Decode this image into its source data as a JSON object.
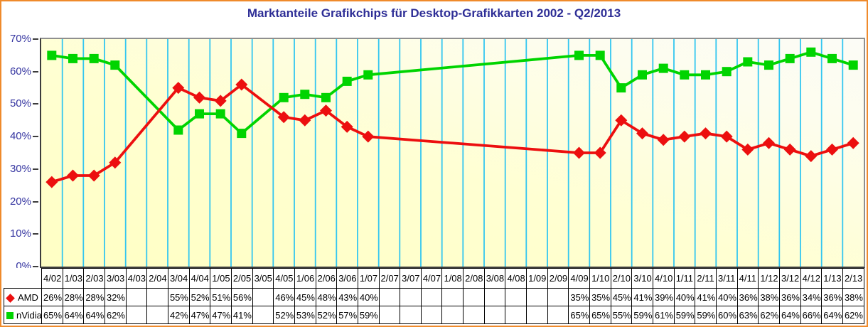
{
  "title": "Marktanteile Grafikchips für Desktop-Grafikkarten 2002 - Q2/2013",
  "colors": {
    "amd": "#EC0F0F",
    "nvidia": "#00D400",
    "gridline": "#33C6F0",
    "title_text": "#2E2E96",
    "axis_text": "#3434A0",
    "outer_border": "#EF8A2B",
    "plot_bg_yellow": "#FFFFC4",
    "plot_bg_light": "#FCFCF6"
  },
  "chart_data": {
    "type": "line",
    "title": "Marktanteile Grafikchips für Desktop-Grafikkarten 2002 - Q2/2013",
    "xlabel": "",
    "ylabel": "",
    "ylim": [
      0,
      70
    ],
    "ytick_step": 10,
    "ytick_suffix": "%",
    "grid": "vertical-only",
    "legend_position": "table-left",
    "categories": [
      "4/02",
      "1/03",
      "2/03",
      "3/03",
      "4/03",
      "2/04",
      "3/04",
      "4/04",
      "1/05",
      "2/05",
      "3/05",
      "4/05",
      "1/06",
      "2/06",
      "3/06",
      "1/07",
      "2/07",
      "3/07",
      "4/07",
      "1/08",
      "2/08",
      "3/08",
      "4/08",
      "1/09",
      "2/09",
      "4/09",
      "1/10",
      "2/10",
      "3/10",
      "4/10",
      "1/11",
      "2/11",
      "3/11",
      "4/11",
      "1/12",
      "3/12",
      "4/12",
      "1/13",
      "2/13"
    ],
    "series": [
      {
        "name": "AMD",
        "marker": "diamond",
        "color": "#EC0F0F",
        "values": [
          26,
          28,
          28,
          32,
          null,
          null,
          55,
          52,
          51,
          56,
          null,
          46,
          45,
          48,
          43,
          40,
          null,
          null,
          null,
          null,
          null,
          null,
          null,
          null,
          null,
          35,
          35,
          45,
          41,
          39,
          40,
          41,
          40,
          36,
          38,
          36,
          34,
          36,
          38
        ]
      },
      {
        "name": "nVidia",
        "marker": "square",
        "color": "#00D400",
        "values": [
          65,
          64,
          64,
          62,
          null,
          null,
          42,
          47,
          47,
          41,
          null,
          52,
          53,
          52,
          57,
          59,
          null,
          null,
          null,
          null,
          null,
          null,
          null,
          null,
          null,
          65,
          65,
          55,
          59,
          61,
          59,
          59,
          60,
          63,
          62,
          64,
          66,
          64,
          62
        ]
      }
    ]
  }
}
